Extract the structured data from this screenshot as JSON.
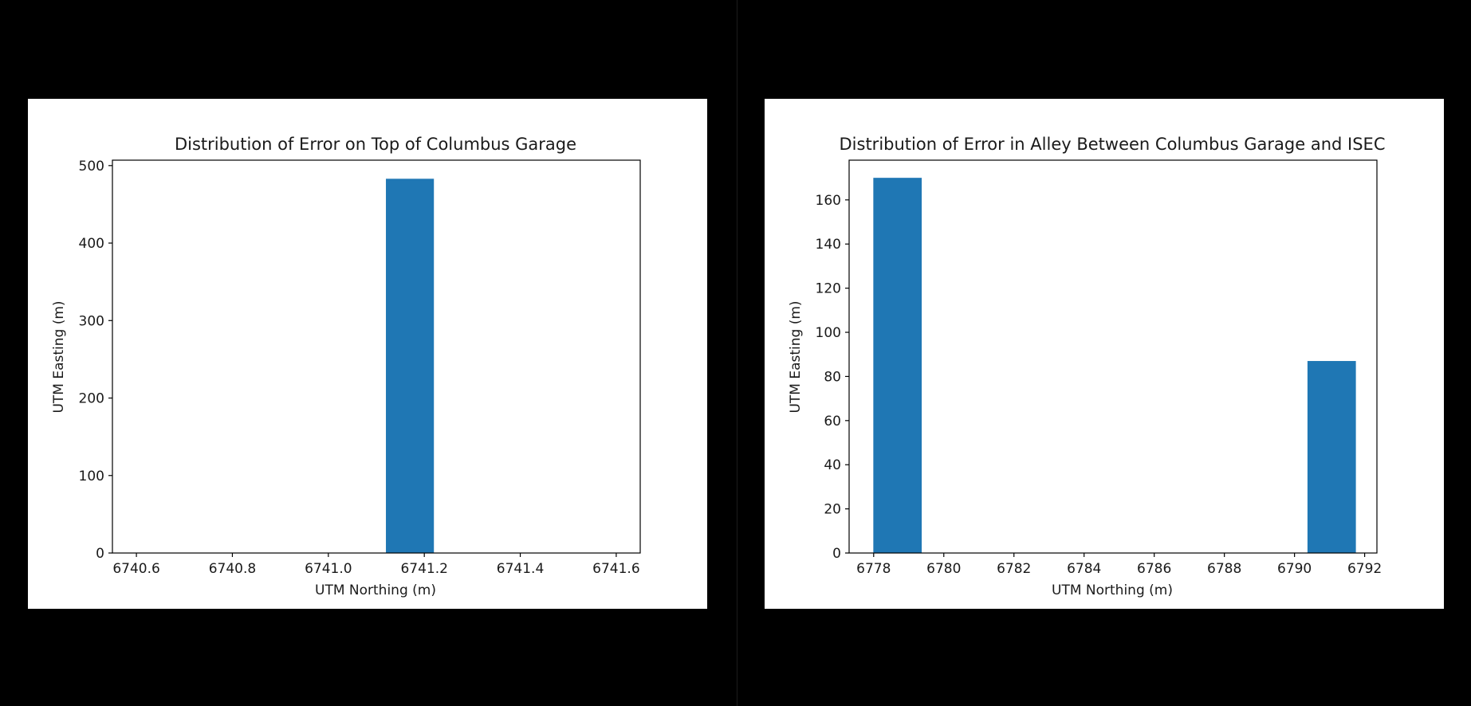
{
  "colors": {
    "background": "#000000",
    "panel": "#ffffff",
    "bar": "#1f77b4",
    "axis": "#000000"
  },
  "chart_data": [
    {
      "type": "bar",
      "title": "Distribution of Error on Top of Columbus Garage",
      "xlabel": "UTM Northing (m)",
      "ylabel": "UTM Easting (m)",
      "xlim": [
        6740.55,
        6741.65
      ],
      "ylim": [
        0,
        507
      ],
      "xticks": [
        6740.6,
        6740.8,
        6741.0,
        6741.2,
        6741.4,
        6741.6
      ],
      "xtick_labels": [
        "6740.6",
        "6740.8",
        "6741.0",
        "6741.2",
        "6741.4",
        "6741.6"
      ],
      "yticks": [
        0,
        100,
        200,
        300,
        400,
        500
      ],
      "ytick_labels": [
        "0",
        "100",
        "200",
        "300",
        "400",
        "500"
      ],
      "bars": [
        {
          "x0": 6741.12,
          "x1": 6741.22,
          "value": 483
        }
      ],
      "grid": false
    },
    {
      "type": "bar",
      "title": "Distribution of Error in Alley Between Columbus Garage and ISEC",
      "xlabel": "UTM Northing (m)",
      "ylabel": "UTM Easting (m)",
      "xlim": [
        6777.3,
        6792.35
      ],
      "ylim": [
        0,
        178
      ],
      "xticks": [
        6778,
        6780,
        6782,
        6784,
        6786,
        6788,
        6790,
        6792
      ],
      "xtick_labels": [
        "6778",
        "6780",
        "6782",
        "6784",
        "6786",
        "6788",
        "6790",
        "6792"
      ],
      "yticks": [
        0,
        20,
        40,
        60,
        80,
        100,
        120,
        140,
        160
      ],
      "ytick_labels": [
        "0",
        "20",
        "40",
        "60",
        "80",
        "100",
        "120",
        "140",
        "160"
      ],
      "bars": [
        {
          "x0": 6777.99,
          "x1": 6779.37,
          "value": 170
        },
        {
          "x0": 6790.37,
          "x1": 6791.75,
          "value": 87
        }
      ],
      "grid": false
    }
  ]
}
